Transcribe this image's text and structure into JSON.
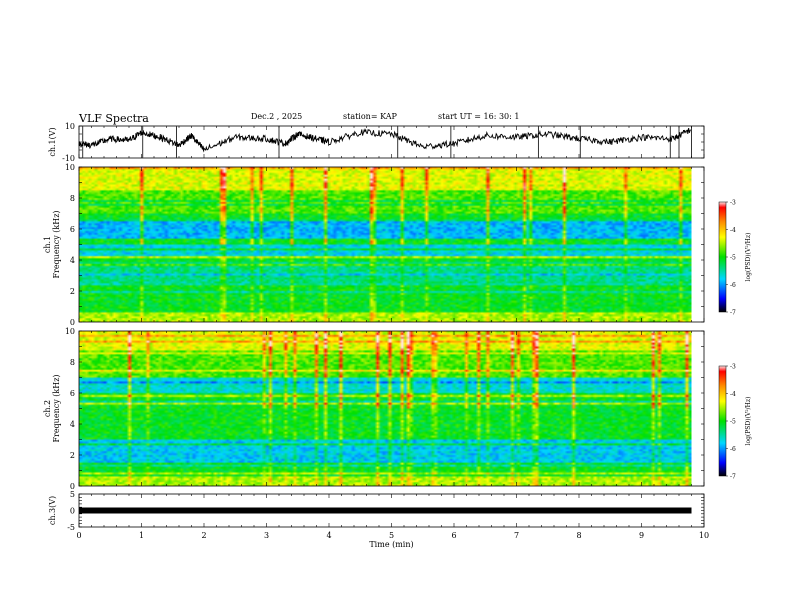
{
  "header": {
    "title": "VLF Spectra",
    "date": "Dec.2 , 2025",
    "station": "station= KAP",
    "start": "start UT =  16: 30: 1"
  },
  "chart_data": [
    {
      "type": "line",
      "panel": "ch1-waveform",
      "ylabel": "ch.1(V)",
      "ylim": [
        -10,
        10
      ],
      "yticks": [
        "10",
        "-10"
      ],
      "xlim": [
        0,
        10
      ],
      "series": [
        {
          "x": [
            0,
            0.2,
            0.5,
            0.8,
            1.0,
            1.3,
            1.6,
            1.8,
            2.0,
            2.5,
            3.0,
            3.3,
            3.5,
            3.8,
            4.0,
            4.5,
            5.0,
            5.5,
            6.0,
            6.5,
            7.0,
            7.5,
            8.0,
            8.5,
            9.0,
            9.5,
            9.8
          ],
          "values": [
            -1,
            -2,
            2,
            1,
            6,
            3,
            -2,
            4,
            -5,
            3,
            2,
            -1,
            5,
            2,
            0,
            6,
            5,
            -3,
            -1,
            4,
            3,
            5,
            2,
            0,
            3,
            2,
            8
          ]
        }
      ]
    },
    {
      "type": "heatmap",
      "panel": "ch1-spectrogram",
      "ylabel": "ch.1\nFrequency (kHz)",
      "yticks": [
        "0",
        "2",
        "4",
        "6",
        "8",
        "10"
      ],
      "ylim": [
        0,
        10
      ],
      "xlim": [
        0,
        10
      ],
      "colorbar": {
        "label": "log(PSD)(V²/Hz)",
        "ticks": [
          "-3",
          "-4",
          "-5",
          "-6",
          "-7"
        ],
        "range": [
          -7,
          -3
        ]
      }
    },
    {
      "type": "heatmap",
      "panel": "ch2-spectrogram",
      "ylabel": "ch.2\nFrequency (kHz)",
      "yticks": [
        "0",
        "2",
        "4",
        "6",
        "8",
        "10"
      ],
      "ylim": [
        0,
        10
      ],
      "xlim": [
        0,
        10
      ],
      "colorbar": {
        "label": "log(PSD)(V²/Hz)",
        "ticks": [
          "-3",
          "-4",
          "-5",
          "-6",
          "-7"
        ],
        "range": [
          -7,
          -3
        ]
      }
    },
    {
      "type": "line",
      "panel": "ch3-waveform",
      "ylabel": "ch.3(V)",
      "ylim": [
        -5,
        5
      ],
      "yticks": [
        "5",
        "0",
        "-5"
      ],
      "xlim": [
        0,
        10
      ],
      "xlabel": "Time (min)",
      "xticks": [
        "0",
        "1",
        "2",
        "3",
        "4",
        "5",
        "6",
        "7",
        "8",
        "9",
        "10"
      ],
      "series": [
        {
          "x": [
            0,
            9.8
          ],
          "values": [
            0,
            0
          ]
        }
      ]
    }
  ]
}
